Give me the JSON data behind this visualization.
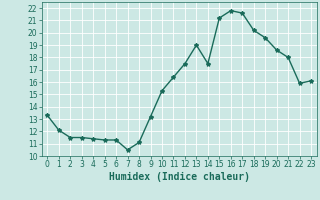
{
  "x": [
    0,
    1,
    2,
    3,
    4,
    5,
    6,
    7,
    8,
    9,
    10,
    11,
    12,
    13,
    14,
    15,
    16,
    17,
    18,
    19,
    20,
    21,
    22,
    23
  ],
  "y": [
    13.3,
    12.1,
    11.5,
    11.5,
    11.4,
    11.3,
    11.3,
    10.5,
    11.1,
    13.2,
    15.3,
    16.4,
    17.5,
    19.0,
    17.5,
    21.2,
    21.8,
    21.6,
    20.2,
    19.6,
    18.6,
    18.0,
    15.9,
    16.1
  ],
  "line_color": "#1a6b5a",
  "marker": "*",
  "marker_size": 3,
  "bg_color": "#cce8e4",
  "grid_color": "#ffffff",
  "xlabel": "Humidex (Indice chaleur)",
  "xlim": [
    -0.5,
    23.5
  ],
  "ylim": [
    10,
    22.5
  ],
  "yticks": [
    10,
    11,
    12,
    13,
    14,
    15,
    16,
    17,
    18,
    19,
    20,
    21,
    22
  ],
  "xticks": [
    0,
    1,
    2,
    3,
    4,
    5,
    6,
    7,
    8,
    9,
    10,
    11,
    12,
    13,
    14,
    15,
    16,
    17,
    18,
    19,
    20,
    21,
    22,
    23
  ],
  "tick_color": "#1a6b5a",
  "tick_fontsize": 5.5,
  "xlabel_fontsize": 7,
  "linewidth": 1.0
}
